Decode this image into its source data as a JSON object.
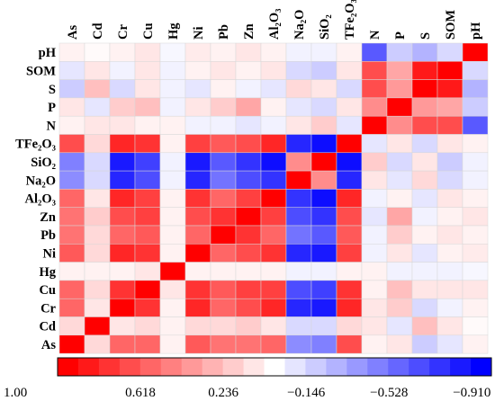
{
  "chart_data": {
    "type": "heatmap",
    "title": "",
    "columns": [
      "As",
      "Cd",
      "Cr",
      "Cu",
      "Hg",
      "Ni",
      "Pb",
      "Zn",
      "Al2O3",
      "Na2O",
      "SiO2",
      "TFe2O3",
      "N",
      "P",
      "S",
      "SOM",
      "pH"
    ],
    "column_labels": [
      "As",
      "Cd",
      "Cr",
      "Cu",
      "Hg",
      "Ni",
      "Pb",
      "Zn",
      "Al₂O₃",
      "Na₂O",
      "SiO₂",
      "TFe₂O₃",
      "N",
      "P",
      "S",
      "SOM",
      "pH"
    ],
    "rows": [
      "pH",
      "SOM",
      "S",
      "P",
      "N",
      "TFe2O3",
      "SiO2",
      "Na2O",
      "Al2O3",
      "Zn",
      "Pb",
      "Ni",
      "Hg",
      "Cu",
      "Cr",
      "Cd",
      "As"
    ],
    "row_labels": [
      "pH",
      "SOM",
      "S",
      "P",
      "N",
      "TFe₂O₃",
      "SiO₂",
      "Na₂O",
      "Al₂O₃",
      "Zn",
      "Pb",
      "Ni",
      "Hg",
      "Cu",
      "Cr",
      "Cd",
      "As"
    ],
    "value_range": [
      -1.0,
      1.0
    ],
    "colormap": {
      "positive": "#ff0000",
      "zero": "#ffffff",
      "negative": "#0000ff"
    },
    "colorbar": {
      "ticks": [
        "1.00",
        "0.618",
        "0.236",
        "−0.146",
        "−0.528",
        "−0.910"
      ],
      "tick_values": [
        1.0,
        0.618,
        0.236,
        -0.146,
        -0.528,
        -0.91
      ],
      "range": [
        1.0,
        -1.0
      ],
      "steps": 21
    },
    "grid_lines": true,
    "values": [
      [
        0.05,
        0.02,
        0.05,
        0.1,
        -0.03,
        0.08,
        0.05,
        0.1,
        0.05,
        -0.05,
        -0.05,
        0.05,
        -0.65,
        -0.2,
        -0.3,
        -0.15,
        1.0
      ],
      [
        -0.1,
        0.1,
        -0.05,
        0.1,
        -0.05,
        0.05,
        0.1,
        0.05,
        0.1,
        -0.15,
        -0.2,
        0.1,
        0.7,
        0.35,
        0.9,
        1.0,
        -0.15
      ],
      [
        -0.2,
        0.25,
        -0.15,
        0.1,
        -0.05,
        -0.1,
        0.05,
        -0.05,
        -0.1,
        0.15,
        0.1,
        -0.15,
        0.7,
        0.4,
        1.0,
        0.9,
        -0.3
      ],
      [
        0.1,
        -0.1,
        0.2,
        0.25,
        -0.05,
        0.1,
        0.2,
        0.35,
        0.05,
        -0.1,
        -0.15,
        0.1,
        0.45,
        1.0,
        0.4,
        0.35,
        -0.2
      ],
      [
        0.05,
        0.1,
        0.1,
        0.05,
        0.05,
        -0.05,
        -0.05,
        -0.1,
        -0.05,
        0.1,
        0.2,
        -0.1,
        1.0,
        0.45,
        0.7,
        0.7,
        -0.65
      ],
      [
        0.7,
        0.15,
        0.85,
        0.8,
        0.05,
        0.75,
        0.65,
        0.7,
        0.85,
        -0.85,
        -0.95,
        1.0,
        -0.1,
        0.1,
        -0.15,
        0.1,
        0.05
      ],
      [
        -0.5,
        -0.15,
        -0.9,
        -0.75,
        -0.05,
        -0.9,
        -0.65,
        -0.8,
        -0.95,
        0.45,
        1.0,
        -0.95,
        0.2,
        -0.15,
        0.1,
        -0.2,
        -0.05
      ],
      [
        -0.45,
        -0.15,
        -0.85,
        -0.7,
        -0.05,
        -0.85,
        -0.55,
        -0.7,
        -0.8,
        1.0,
        0.45,
        -0.85,
        0.1,
        -0.1,
        0.15,
        -0.15,
        -0.05
      ],
      [
        0.6,
        0.1,
        0.85,
        0.75,
        0.05,
        0.8,
        0.6,
        0.75,
        1.0,
        -0.8,
        -0.95,
        0.85,
        -0.05,
        0.05,
        -0.1,
        0.1,
        0.05
      ],
      [
        0.55,
        0.2,
        0.7,
        0.75,
        0.05,
        0.7,
        0.8,
        1.0,
        0.75,
        -0.7,
        -0.8,
        0.7,
        -0.1,
        0.35,
        -0.05,
        0.05,
        0.1
      ],
      [
        0.55,
        0.15,
        0.6,
        0.65,
        0.05,
        0.6,
        1.0,
        0.8,
        0.6,
        -0.55,
        -0.65,
        0.65,
        -0.05,
        0.2,
        0.05,
        0.1,
        0.05
      ],
      [
        0.65,
        0.15,
        0.85,
        0.8,
        0.05,
        1.0,
        0.6,
        0.7,
        0.8,
        -0.85,
        -0.9,
        0.75,
        -0.05,
        0.1,
        -0.1,
        0.05,
        0.08
      ],
      [
        0.05,
        0.05,
        0.05,
        0.1,
        1.0,
        0.05,
        0.05,
        0.05,
        0.05,
        -0.05,
        -0.05,
        0.05,
        0.05,
        -0.05,
        -0.05,
        -0.05,
        -0.03
      ],
      [
        0.6,
        0.15,
        0.8,
        1.0,
        0.1,
        0.8,
        0.65,
        0.75,
        0.75,
        -0.7,
        -0.75,
        0.8,
        0.05,
        0.25,
        0.1,
        0.1,
        0.1
      ],
      [
        0.6,
        0.1,
        1.0,
        0.8,
        0.05,
        0.85,
        0.6,
        0.7,
        0.85,
        -0.85,
        -0.9,
        0.85,
        0.1,
        0.2,
        -0.15,
        -0.05,
        0.05
      ],
      [
        0.15,
        1.0,
        0.1,
        0.15,
        0.05,
        0.15,
        0.15,
        0.2,
        0.1,
        -0.15,
        -0.15,
        0.15,
        0.1,
        -0.1,
        0.25,
        0.1,
        0.02
      ],
      [
        1.0,
        0.15,
        0.6,
        0.6,
        0.05,
        0.65,
        0.55,
        0.55,
        0.6,
        -0.45,
        -0.5,
        0.7,
        0.05,
        0.1,
        -0.2,
        -0.1,
        0.05
      ]
    ]
  }
}
